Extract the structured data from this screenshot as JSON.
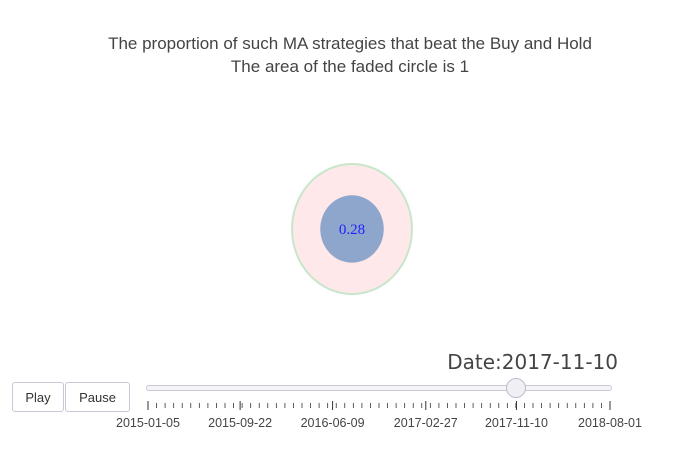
{
  "title_line1": "The proportion of such MA strategies that beat the Buy and Hold",
  "title_line2": "The area of the faded circle is 1",
  "chart_data": {
    "type": "scatter",
    "reference_area": 1,
    "value": 0.28,
    "value_label": "0.28",
    "colors": {
      "reference_fill": "#ffe8ea",
      "reference_stroke": "#c8e6cb",
      "value_fill": "#8ea6cb",
      "value_text": "#2020ff"
    }
  },
  "animation": {
    "play_label": "Play",
    "pause_label": "Pause",
    "date_label": "Date:2017-11-10",
    "current_date": "2017-11-10",
    "range_start": "2015-01-05",
    "range_end": "2018-08-01",
    "tick_labels": [
      "2015-01-05",
      "2015-09-22",
      "2016-06-09",
      "2017-02-27",
      "2017-11-10",
      "2018-08-01"
    ]
  }
}
